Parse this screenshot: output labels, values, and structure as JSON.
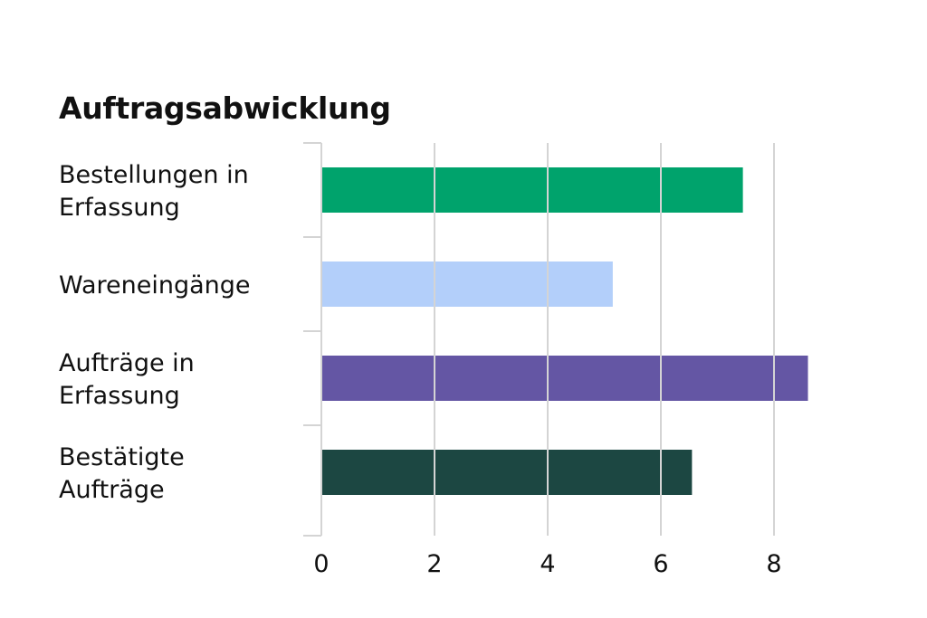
{
  "chart_data": {
    "type": "bar",
    "orientation": "horizontal",
    "title": "Auftragsabwicklung",
    "categories": [
      "Bestellungen in Erfassung",
      "Wareneingänge",
      "Aufträge in Erfassung",
      "Bestätigte Aufträge"
    ],
    "values": [
      7.45,
      5.15,
      8.6,
      6.55
    ],
    "colors": [
      "#00a36c",
      "#b3cffa",
      "#6456a4",
      "#1c4742"
    ],
    "xlabel": "",
    "ylabel": "",
    "xlim": [
      0,
      8.6
    ],
    "xticks": [
      0,
      2,
      4,
      6,
      8
    ],
    "grid": "vertical",
    "legend": "none"
  }
}
